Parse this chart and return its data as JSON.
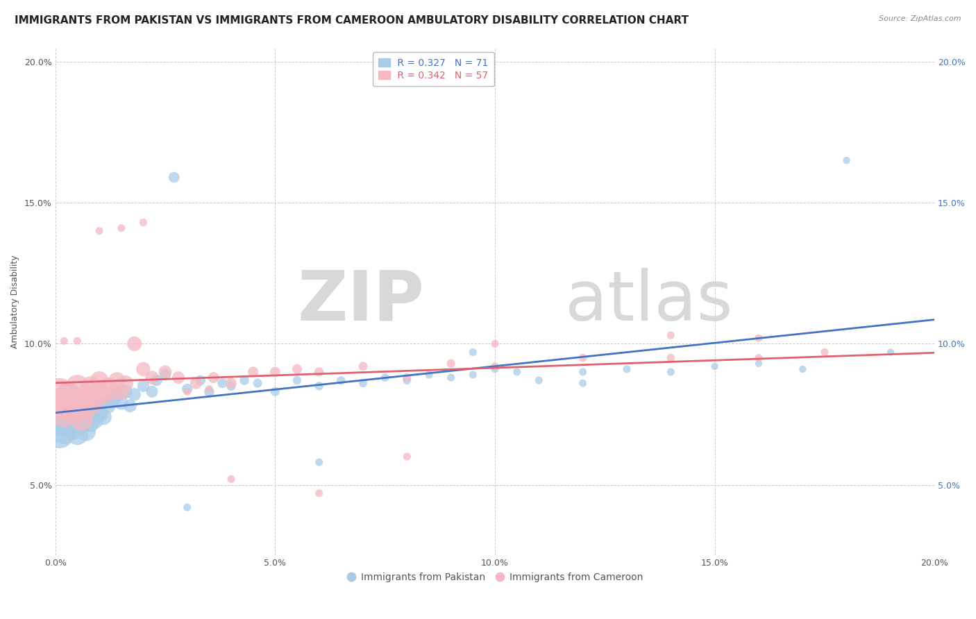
{
  "title": "IMMIGRANTS FROM PAKISTAN VS IMMIGRANTS FROM CAMEROON AMBULATORY DISABILITY CORRELATION CHART",
  "source": "Source: ZipAtlas.com",
  "ylabel": "Ambulatory Disability",
  "pakistan_label": "Immigrants from Pakistan",
  "cameroon_label": "Immigrants from Cameroon",
  "pakistan_R": 0.327,
  "pakistan_N": 71,
  "cameroon_R": 0.342,
  "cameroon_N": 57,
  "pakistan_color": "#a8cce8",
  "cameroon_color": "#f4b8c1",
  "pakistan_line_color": "#4472c4",
  "cameroon_line_color": "#e06070",
  "xlim": [
    0.0,
    0.2
  ],
  "ylim": [
    0.025,
    0.205
  ],
  "pakistan_x": [
    0.001,
    0.001,
    0.001,
    0.002,
    0.002,
    0.002,
    0.003,
    0.003,
    0.003,
    0.004,
    0.004,
    0.004,
    0.005,
    0.005,
    0.005,
    0.006,
    0.006,
    0.007,
    0.007,
    0.007,
    0.008,
    0.008,
    0.009,
    0.009,
    0.01,
    0.01,
    0.011,
    0.012,
    0.013,
    0.014,
    0.015,
    0.016,
    0.017,
    0.018,
    0.02,
    0.022,
    0.023,
    0.025,
    0.027,
    0.03,
    0.033,
    0.035,
    0.038,
    0.04,
    0.043,
    0.046,
    0.05,
    0.055,
    0.06,
    0.065,
    0.07,
    0.075,
    0.08,
    0.085,
    0.09,
    0.095,
    0.1,
    0.105,
    0.11,
    0.12,
    0.13,
    0.14,
    0.15,
    0.16,
    0.17,
    0.18,
    0.19,
    0.12,
    0.03,
    0.095,
    0.06
  ],
  "pakistan_y": [
    0.073,
    0.068,
    0.079,
    0.072,
    0.075,
    0.069,
    0.071,
    0.076,
    0.082,
    0.07,
    0.074,
    0.079,
    0.068,
    0.073,
    0.077,
    0.072,
    0.075,
    0.069,
    0.074,
    0.078,
    0.072,
    0.076,
    0.073,
    0.078,
    0.075,
    0.079,
    0.074,
    0.078,
    0.08,
    0.082,
    0.079,
    0.083,
    0.078,
    0.082,
    0.085,
    0.083,
    0.087,
    0.089,
    0.159,
    0.084,
    0.087,
    0.083,
    0.086,
    0.085,
    0.087,
    0.086,
    0.083,
    0.087,
    0.085,
    0.087,
    0.086,
    0.088,
    0.087,
    0.089,
    0.088,
    0.089,
    0.091,
    0.09,
    0.087,
    0.09,
    0.091,
    0.09,
    0.092,
    0.093,
    0.091,
    0.165,
    0.097,
    0.086,
    0.042,
    0.097,
    0.058
  ],
  "pakistan_sizes": [
    120,
    110,
    100,
    100,
    95,
    90,
    85,
    82,
    78,
    75,
    72,
    68,
    65,
    62,
    60,
    58,
    55,
    53,
    50,
    48,
    46,
    44,
    42,
    40,
    38,
    36,
    34,
    32,
    30,
    28,
    26,
    25,
    23,
    22,
    20,
    19,
    18,
    17,
    16,
    15,
    14,
    14,
    13,
    12,
    12,
    11,
    11,
    10,
    10,
    10,
    9,
    9,
    9,
    8,
    8,
    8,
    8,
    8,
    8,
    8,
    8,
    8,
    7,
    7,
    7,
    7,
    7,
    8,
    8,
    8,
    8
  ],
  "cameroon_x": [
    0.001,
    0.001,
    0.002,
    0.002,
    0.003,
    0.003,
    0.004,
    0.005,
    0.005,
    0.006,
    0.006,
    0.007,
    0.007,
    0.008,
    0.008,
    0.009,
    0.01,
    0.01,
    0.011,
    0.012,
    0.013,
    0.014,
    0.015,
    0.016,
    0.018,
    0.02,
    0.022,
    0.025,
    0.028,
    0.032,
    0.036,
    0.04,
    0.045,
    0.05,
    0.055,
    0.06,
    0.07,
    0.08,
    0.09,
    0.1,
    0.12,
    0.14,
    0.16,
    0.175,
    0.03,
    0.04,
    0.06,
    0.08,
    0.1,
    0.035,
    0.02,
    0.01,
    0.015,
    0.005,
    0.002,
    0.16,
    0.14
  ],
  "cameroon_y": [
    0.079,
    0.083,
    0.075,
    0.08,
    0.077,
    0.082,
    0.076,
    0.079,
    0.085,
    0.073,
    0.078,
    0.077,
    0.082,
    0.08,
    0.085,
    0.079,
    0.083,
    0.087,
    0.082,
    0.085,
    0.083,
    0.087,
    0.083,
    0.086,
    0.1,
    0.091,
    0.088,
    0.09,
    0.088,
    0.086,
    0.088,
    0.086,
    0.09,
    0.09,
    0.091,
    0.09,
    0.092,
    0.088,
    0.093,
    0.092,
    0.095,
    0.095,
    0.095,
    0.097,
    0.083,
    0.052,
    0.047,
    0.06,
    0.1,
    0.084,
    0.143,
    0.14,
    0.141,
    0.101,
    0.101,
    0.102,
    0.103
  ],
  "cameroon_sizes": [
    110,
    100,
    95,
    90,
    85,
    80,
    75,
    70,
    68,
    65,
    62,
    60,
    57,
    55,
    52,
    50,
    48,
    45,
    43,
    41,
    39,
    37,
    35,
    33,
    29,
    27,
    25,
    23,
    21,
    19,
    17,
    16,
    15,
    14,
    13,
    12,
    11,
    10,
    10,
    9,
    9,
    9,
    8,
    8,
    8,
    8,
    8,
    8,
    8,
    8,
    8,
    8,
    8,
    8,
    8,
    8,
    8
  ],
  "watermark_zip": "ZIP",
  "watermark_atlas": "atlas",
  "watermark_color": "#d8d8d8",
  "background_color": "#ffffff",
  "grid_color": "#cccccc",
  "title_fontsize": 11,
  "axis_label_fontsize": 9,
  "tick_fontsize": 9,
  "legend_fontsize": 10,
  "source_fontsize": 8
}
